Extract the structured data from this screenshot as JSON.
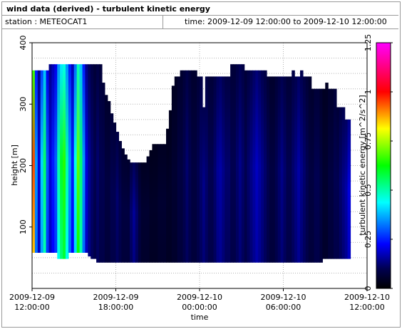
{
  "title": "wind data (derived) - turbulent kinetic energy",
  "station_text": "station : METEOCAT1",
  "time_text": "time: 2009-12-09 12:00:00 to 2009-12-10 12:00:00",
  "chart_data": {
    "type": "heatmap",
    "xlabel": "time",
    "ylabel": "height [m]",
    "colorbar_label": "turbulent kinetic energy [m^2/s^2]",
    "x_ticks": [
      {
        "line1": "2009-12-09",
        "line2": "12:00:00"
      },
      {
        "line1": "2009-12-09",
        "line2": "18:00:00"
      },
      {
        "line1": "2009-12-10",
        "line2": "00:00:00"
      },
      {
        "line1": "2009-12-10",
        "line2": "06:00:00"
      },
      {
        "line1": "2009-12-10",
        "line2": "12:00:00"
      }
    ],
    "y_ticks": [
      "100",
      "200",
      "300",
      "400"
    ],
    "colorbar_ticks": [
      "0",
      "0.25",
      "0.5",
      "0.75",
      "1",
      "1.25"
    ],
    "xlim": [
      "2009-12-09 12:00:00",
      "2009-12-10 12:00:00"
    ],
    "ylim": [
      0,
      400
    ],
    "clim": [
      0,
      1.25
    ],
    "grid": true,
    "data_bottom_height_m": [
      58,
      58,
      58,
      58,
      58,
      58,
      58,
      58,
      58,
      48,
      48,
      48,
      48,
      58,
      58,
      58,
      58,
      58,
      58,
      58,
      52,
      48,
      48,
      42,
      42,
      42,
      42,
      42,
      42,
      42,
      42,
      42,
      42,
      42,
      42,
      42,
      42,
      42,
      42,
      42,
      42,
      42,
      42,
      42,
      42,
      42,
      42,
      42,
      42,
      42,
      42,
      42,
      42,
      42,
      42,
      42,
      42,
      42,
      42,
      42,
      42,
      42,
      42,
      42,
      42,
      42,
      42,
      42,
      42,
      42,
      42,
      42,
      42,
      42,
      42,
      42,
      42,
      42,
      42,
      42,
      42,
      42,
      42,
      42,
      42,
      42,
      42,
      42,
      42,
      42,
      42,
      42,
      42,
      42,
      42,
      42,
      42,
      42,
      42,
      42,
      42,
      42,
      42,
      42,
      48,
      48,
      48,
      48,
      48,
      48,
      48,
      48,
      48,
      48
    ],
    "data_top_height_m": [
      355,
      355,
      355,
      355,
      355,
      355,
      365,
      365,
      365,
      365,
      365,
      365,
      365,
      365,
      365,
      365,
      365,
      365,
      365,
      365,
      365,
      365,
      365,
      365,
      365,
      335,
      315,
      305,
      285,
      270,
      255,
      240,
      228,
      218,
      210,
      205,
      205,
      205,
      205,
      205,
      205,
      215,
      225,
      235,
      235,
      235,
      235,
      235,
      260,
      290,
      330,
      345,
      345,
      355,
      355,
      355,
      355,
      355,
      355,
      345,
      345,
      295,
      345,
      345,
      345,
      345,
      345,
      345,
      345,
      345,
      345,
      365,
      365,
      365,
      365,
      365,
      355,
      355,
      355,
      355,
      355,
      355,
      355,
      355,
      345,
      345,
      345,
      345,
      345,
      345,
      345,
      345,
      345,
      355,
      345,
      345,
      355,
      345,
      345,
      345,
      325,
      325,
      325,
      325,
      325,
      335,
      325,
      325,
      325,
      295,
      295,
      295,
      275,
      275,
      275,
      275,
      275,
      285,
      295,
      295
    ],
    "values_mean_tke_m2_s2": [
      0.95,
      0.35,
      0.2,
      0.4,
      0.55,
      0.3,
      0.2,
      0.25,
      0.3,
      0.5,
      0.6,
      0.65,
      0.5,
      0.35,
      0.25,
      0.45,
      0.7,
      0.55,
      0.35,
      0.2,
      0.15,
      0.12,
      0.1,
      0.12,
      0.1,
      0.1,
      0.08,
      0.08,
      0.1,
      0.1,
      0.12,
      0.1,
      0.08,
      0.08,
      0.08,
      0.12,
      0.15,
      0.12,
      0.08,
      0.06,
      0.06,
      0.06,
      0.05,
      0.05,
      0.05,
      0.06,
      0.06,
      0.06,
      0.05,
      0.05,
      0.06,
      0.06,
      0.08,
      0.08,
      0.1,
      0.12,
      0.1,
      0.08,
      0.08,
      0.1,
      0.12,
      0.14,
      0.12,
      0.1,
      0.1,
      0.12,
      0.15,
      0.16,
      0.14,
      0.12,
      0.12,
      0.1,
      0.1,
      0.12,
      0.14,
      0.12,
      0.1,
      0.12,
      0.14,
      0.16,
      0.18,
      0.16,
      0.14,
      0.12,
      0.1,
      0.08,
      0.08,
      0.1,
      0.12,
      0.14,
      0.12,
      0.1,
      0.1,
      0.12,
      0.14,
      0.16,
      0.14,
      0.12,
      0.1,
      0.08,
      0.08,
      0.1,
      0.1,
      0.08,
      0.06,
      0.06,
      0.08,
      0.08,
      0.1,
      0.1,
      0.12,
      0.14,
      0.16,
      0.2,
      0.3,
      0.22,
      0.14,
      0.1,
      0.08,
      0.08
    ]
  }
}
